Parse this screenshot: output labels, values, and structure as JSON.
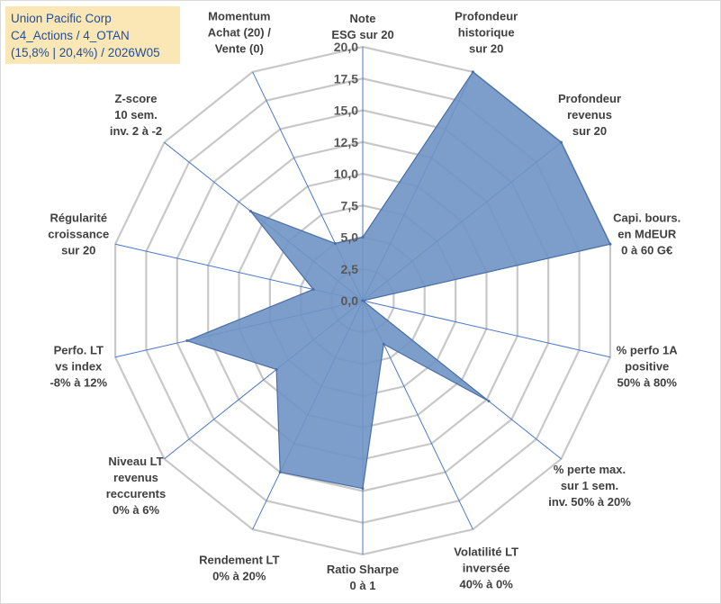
{
  "header": {
    "line1": "Union Pacific Corp",
    "line2": "C4_Actions / 4_OTAN",
    "line3": "(15,8% | 20,4%) / 2026W05"
  },
  "colors": {
    "fill": "#6f93c4",
    "stroke": "#4a6fa5",
    "grid": "#c8c8c8",
    "spoke": "#4a78c9"
  },
  "chart_data": {
    "type": "radar",
    "rmin": 0,
    "rmax": 20,
    "ticks": [
      "0,0",
      "2,5",
      "5,0",
      "7,5",
      "10,0",
      "12,5",
      "15,0",
      "17,5",
      "20,0"
    ],
    "tick_values": [
      0,
      2.5,
      5,
      7.5,
      10,
      12.5,
      15,
      17.5,
      20
    ],
    "axes": [
      {
        "label": [
          "Note",
          "ESG sur 20"
        ],
        "value": 5.0
      },
      {
        "label": [
          "Profondeur",
          "historique",
          "sur 20"
        ],
        "value": 20.0
      },
      {
        "label": [
          "Profondeur",
          "revenus",
          "sur 20"
        ],
        "value": 20.0
      },
      {
        "label": [
          "Capi. bours.",
          "en MdEUR",
          "0 à 60 G€"
        ],
        "value": 20.0
      },
      {
        "label": [
          "% perfo 1A",
          "positive",
          "50% à 80%"
        ],
        "value": 0.0
      },
      {
        "label": [
          "% perte max.",
          "sur 1 sem.",
          "inv. 50% à 20%"
        ],
        "value": 12.7
      },
      {
        "label": [
          "Volatilité LT",
          "inversée",
          "40% à 0%"
        ],
        "value": 3.8
      },
      {
        "label": [
          "Ratio Sharpe",
          "0 à 1"
        ],
        "value": 14.8
      },
      {
        "label": [
          "Rendement LT",
          "0% à 20%"
        ],
        "value": 15.0
      },
      {
        "label": [
          "Niveau LT",
          "revenus",
          "reccurents",
          "0% à 6%"
        ],
        "value": 8.7
      },
      {
        "label": [
          "Perfo. LT",
          "vs index",
          "-8% à 12%"
        ],
        "value": 14.2
      },
      {
        "label": [
          "Régularité",
          "croissance",
          "sur 20"
        ],
        "value": 4.0
      },
      {
        "label": [
          "Z-score",
          "10 sem.",
          "inv. 2 à -2"
        ],
        "value": 11.3
      },
      {
        "label": [
          "Momentum",
          "Achat (20) /",
          "Vente (0)"
        ],
        "value": 5.0
      }
    ]
  }
}
